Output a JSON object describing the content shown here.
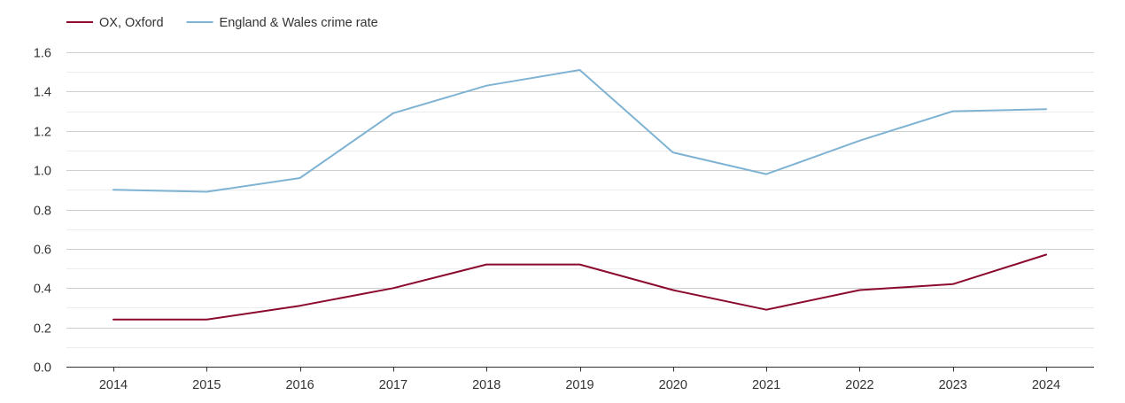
{
  "chart_data": {
    "type": "line",
    "title": "",
    "xlabel": "",
    "ylabel": "",
    "categories": [
      "2014",
      "2015",
      "2016",
      "2017",
      "2018",
      "2019",
      "2020",
      "2021",
      "2022",
      "2023",
      "2024"
    ],
    "ylim": [
      0,
      1.6
    ],
    "yticks": [
      "0.0",
      "0.2",
      "0.4",
      "0.6",
      "0.8",
      "1.0",
      "1.2",
      "1.4",
      "1.6"
    ],
    "grid": true,
    "legend_position": "top-left",
    "series": [
      {
        "name": "OX, Oxford",
        "color": "#8b0a2e",
        "values": [
          0.24,
          0.24,
          0.31,
          0.4,
          0.52,
          0.52,
          0.39,
          0.29,
          0.39,
          0.42,
          0.57
        ]
      },
      {
        "name": "England & Wales crime rate",
        "color": "#7fb3d3",
        "values": [
          0.9,
          0.89,
          0.96,
          1.29,
          1.43,
          1.51,
          1.09,
          0.98,
          1.15,
          1.3,
          1.31
        ]
      }
    ]
  }
}
